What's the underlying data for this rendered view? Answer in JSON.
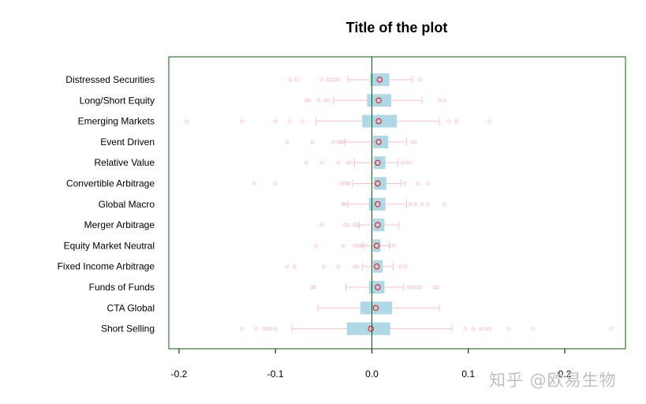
{
  "chart_data": {
    "type": "boxplot",
    "title": "Title of the plot",
    "xlabel": "",
    "ylabel": "",
    "xlim": [
      -0.205,
      0.265
    ],
    "xticks": [
      -0.2,
      -0.1,
      0.0,
      0.1,
      0.2
    ],
    "xtick_labels": [
      "-0.2",
      "-0.1",
      "0.0",
      "0.1",
      "0.2"
    ],
    "reference_line_x": 0,
    "colors": {
      "box_fill": "#add8e6",
      "whisker": "#ffc0cb",
      "outlier": "#ffc0cb",
      "mean_marker_edge": "#ff0000",
      "frame": "#006400",
      "reference_line": "#006400"
    },
    "series": [
      {
        "name": "Distressed Securities",
        "min": -0.025,
        "q1": -0.002,
        "median": 0.008,
        "q3": 0.018,
        "max": 0.042,
        "mean": 0.008,
        "outliers": [
          -0.085,
          -0.078,
          -0.052,
          -0.045,
          -0.042,
          -0.038,
          -0.035,
          0.05
        ]
      },
      {
        "name": "Long/Short Equity",
        "min": -0.04,
        "q1": -0.005,
        "median": 0.008,
        "q3": 0.02,
        "max": 0.052,
        "mean": 0.007,
        "outliers": [
          -0.068,
          -0.065,
          -0.055,
          -0.048,
          -0.045,
          0.07,
          0.075
        ]
      },
      {
        "name": "Emerging Markets",
        "min": -0.058,
        "q1": -0.01,
        "median": 0.008,
        "q3": 0.026,
        "max": 0.07,
        "mean": 0.007,
        "outliers": [
          -0.192,
          -0.135,
          -0.1,
          -0.085,
          -0.072,
          0.08,
          0.088,
          0.122
        ]
      },
      {
        "name": "Event Driven",
        "min": -0.028,
        "q1": 0.001,
        "median": 0.009,
        "q3": 0.017,
        "max": 0.036,
        "mean": 0.007,
        "outliers": [
          -0.088,
          -0.062,
          -0.04,
          -0.035,
          -0.032,
          -0.03,
          0.042,
          0.045
        ]
      },
      {
        "name": "Relative Value",
        "min": -0.018,
        "q1": 0.002,
        "median": 0.007,
        "q3": 0.014,
        "max": 0.027,
        "mean": 0.006,
        "outliers": [
          -0.068,
          -0.052,
          -0.035,
          -0.025,
          -0.022,
          0.032,
          0.036,
          0.04
        ]
      },
      {
        "name": "Convertible Arbitrage",
        "min": -0.02,
        "q1": 0.002,
        "median": 0.008,
        "q3": 0.015,
        "max": 0.03,
        "mean": 0.006,
        "outliers": [
          -0.122,
          -0.1,
          -0.032,
          -0.029,
          -0.026,
          -0.024,
          0.034,
          0.048,
          0.058
        ]
      },
      {
        "name": "Global Macro",
        "min": -0.025,
        "q1": -0.003,
        "median": 0.006,
        "q3": 0.014,
        "max": 0.036,
        "mean": 0.006,
        "outliers": [
          -0.03,
          -0.028,
          0.04,
          0.045,
          0.052,
          0.058,
          0.075
        ]
      },
      {
        "name": "Merger Arbitrage",
        "min": -0.013,
        "q1": 0.001,
        "median": 0.007,
        "q3": 0.013,
        "max": 0.028,
        "mean": 0.006,
        "outliers": [
          -0.052,
          -0.028,
          -0.025,
          -0.018,
          -0.015
        ]
      },
      {
        "name": "Equity Market Neutral",
        "min": -0.009,
        "q1": 0.001,
        "median": 0.005,
        "q3": 0.009,
        "max": 0.018,
        "mean": 0.005,
        "outliers": [
          -0.058,
          -0.03,
          -0.018,
          -0.015,
          -0.012,
          -0.01,
          0.02,
          0.023
        ]
      },
      {
        "name": "Fixed Income Arbitrage",
        "min": -0.01,
        "q1": 0.001,
        "median": 0.006,
        "q3": 0.011,
        "max": 0.022,
        "mean": 0.005,
        "outliers": [
          -0.088,
          -0.08,
          -0.05,
          -0.035,
          -0.018,
          -0.015,
          0.03,
          0.035
        ]
      },
      {
        "name": "Funds of Funds",
        "min": -0.027,
        "q1": -0.003,
        "median": 0.006,
        "q3": 0.013,
        "max": 0.033,
        "mean": 0.006,
        "outliers": [
          -0.062,
          -0.06,
          0.038,
          0.042,
          0.046,
          0.05,
          0.065,
          0.068
        ]
      },
      {
        "name": "CTA Global",
        "min": -0.056,
        "q1": -0.012,
        "median": 0.004,
        "q3": 0.021,
        "max": 0.07,
        "mean": 0.004,
        "outliers": []
      },
      {
        "name": "Short Selling",
        "min": -0.083,
        "q1": -0.026,
        "median": -0.002,
        "q3": 0.019,
        "max": 0.083,
        "mean": -0.001,
        "outliers": [
          -0.135,
          -0.12,
          -0.112,
          -0.108,
          -0.105,
          -0.1,
          0.097,
          0.105,
          0.113,
          0.118,
          0.122,
          0.142,
          0.167,
          0.248
        ]
      }
    ]
  },
  "watermark": "知乎 @欧易生物"
}
